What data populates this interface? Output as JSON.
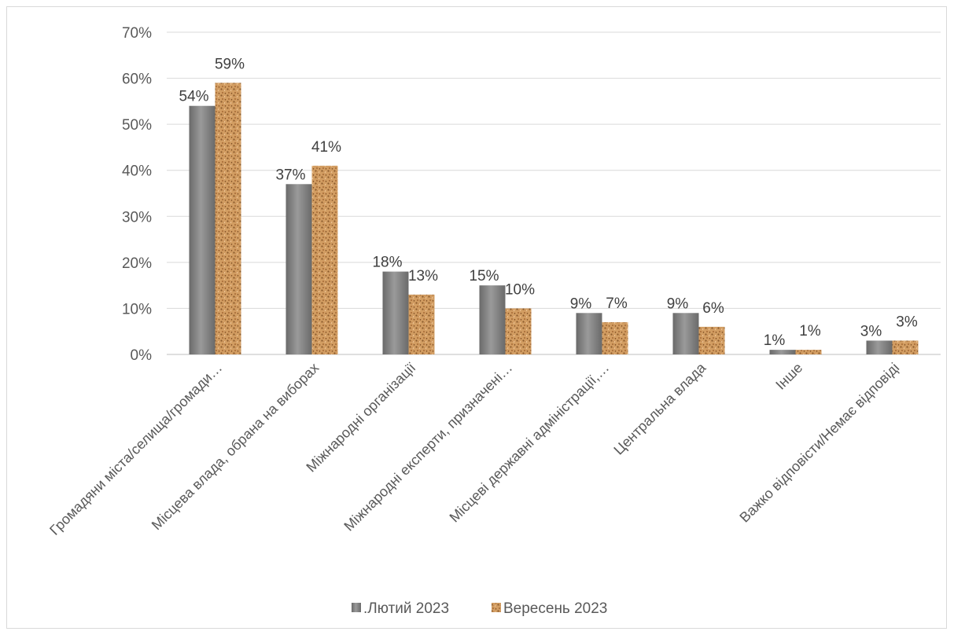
{
  "chart_data": {
    "type": "bar",
    "title": "",
    "xlabel": "",
    "ylabel": "",
    "ylim": [
      0,
      70
    ],
    "y_ticks": [
      "0%",
      "10%",
      "20%",
      "30%",
      "40%",
      "50%",
      "60%",
      "70%"
    ],
    "grid": true,
    "legend_position": "bottom",
    "categories": [
      "Громадяни міста/селища/громади…",
      "Місцева влада, обрана на виборах",
      "Міжнародні організації",
      "Міжнародні експерти, призначені…",
      "Місцеві державні адміністрації,…",
      "Центральна влада",
      "Інше",
      "Важко відповісти/Немає відповіді"
    ],
    "series": [
      {
        "name": ".Лютий 2023",
        "color": "#7f7f7f",
        "values": [
          54,
          37,
          18,
          15,
          9,
          9,
          1,
          3
        ],
        "labels": [
          "54%",
          "37%",
          "18%",
          "15%",
          "9%",
          "9%",
          "1%",
          "3%"
        ]
      },
      {
        "name": "Вересень 2023",
        "color": "#c68a4f",
        "values": [
          59,
          41,
          13,
          10,
          7,
          6,
          1,
          3
        ],
        "labels": [
          "59%",
          "41%",
          "13%",
          "10%",
          "7%",
          "6%",
          "1%",
          "3%"
        ]
      }
    ]
  }
}
